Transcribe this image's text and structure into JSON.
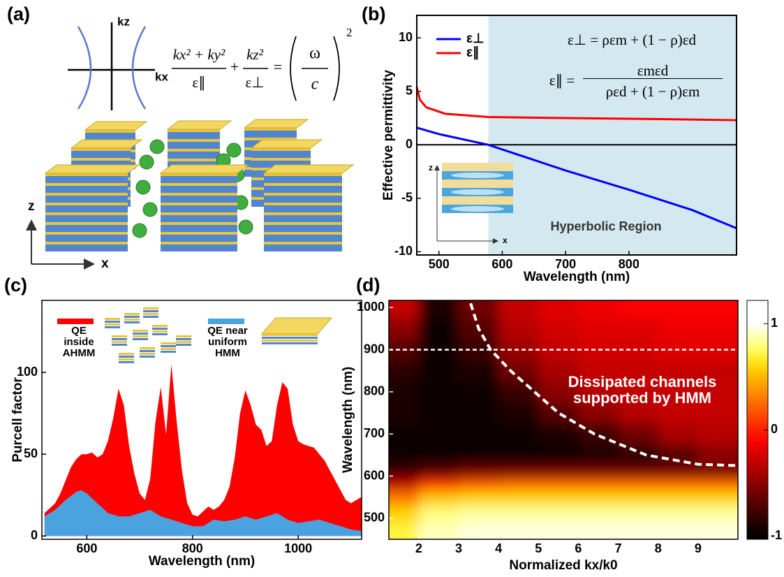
{
  "panel_labels": [
    "(a)",
    "(b)",
    "(c)",
    "(d)"
  ],
  "diagram_a": {
    "kz_label": "kz",
    "kx_label": "kx",
    "equation": {
      "num1": "kx² + ky²",
      "den1": "ε∥",
      "plus": "+",
      "num2": "kz²",
      "den2": "ε⊥",
      "equals": "=",
      "omega": "ω",
      "c": "c",
      "power": "2"
    },
    "axis_z": "z",
    "axis_x": "x"
  },
  "chart_data": [
    {
      "type": "line",
      "xlabel": "Wavelength (nm)",
      "ylabel": "Effective permittivity",
      "xlim": [
        465,
        970
      ],
      "xticks": [
        500,
        600,
        700,
        800
      ],
      "ylim": [
        -10.3,
        12.1
      ],
      "yticks": [
        -10,
        -5,
        0,
        5,
        10
      ],
      "series": [
        {
          "name": "ε⊥",
          "color": "#0000ff",
          "x": [
            465,
            500,
            578,
            700,
            800,
            900,
            970
          ],
          "values": [
            1.6,
            1.0,
            0,
            -2.4,
            -4.2,
            -6.1,
            -7.8
          ]
        },
        {
          "name": "ε∥",
          "color": "#ff0000",
          "x": [
            465,
            470,
            480,
            510,
            578,
            700,
            850,
            970
          ],
          "values": [
            5.4,
            4.2,
            3.5,
            2.9,
            2.6,
            2.5,
            2.4,
            2.3
          ]
        }
      ],
      "region_start": 578,
      "region_color": "#d4e8f0",
      "annotation": "Hyperbolic Region",
      "inset_labels": {
        "z": "z",
        "x": "x"
      },
      "equations": {
        "perp": "ε⊥ = ρεm + (1 − ρ)εd",
        "par_lhs": "ε∥ =",
        "par_num": "εmεd",
        "par_den": "ρεd + (1 − ρ)εm"
      }
    },
    {
      "type": "area",
      "xlabel": "Wavelength (nm)",
      "ylabel": "Purcell factor",
      "xlim": [
        515,
        1120
      ],
      "xticks": [
        600,
        800,
        1000
      ],
      "ylim": [
        -2,
        144
      ],
      "yticks": [
        0,
        50,
        100
      ],
      "series": [
        {
          "name": "QE inside AHMM",
          "color": "#ff0000",
          "x": [
            520,
            530,
            540,
            550,
            560,
            570,
            580,
            590,
            600,
            610,
            620,
            630,
            640,
            650,
            660,
            670,
            680,
            690,
            700,
            710,
            720,
            730,
            740,
            750,
            760,
            770,
            780,
            790,
            800,
            810,
            820,
            830,
            840,
            850,
            860,
            870,
            880,
            890,
            900,
            910,
            920,
            930,
            940,
            950,
            960,
            970,
            980,
            990,
            1000,
            1010,
            1020,
            1030,
            1040,
            1050,
            1060,
            1070,
            1080,
            1090,
            1100,
            1110,
            1120
          ],
          "values": [
            14,
            17,
            20,
            26,
            34,
            42,
            47,
            50,
            50,
            51,
            48,
            50,
            58,
            72,
            90,
            80,
            55,
            38,
            26,
            22,
            35,
            70,
            91,
            62,
            105,
            70,
            40,
            20,
            13,
            12,
            15,
            18,
            16,
            18,
            22,
            30,
            48,
            75,
            89,
            80,
            68,
            65,
            55,
            58,
            80,
            94,
            90,
            68,
            58,
            56,
            55,
            54,
            50,
            46,
            40,
            34,
            28,
            22,
            20,
            22,
            24
          ]
        },
        {
          "name": "QE near uniform HMM",
          "color": "#4aa3df",
          "x": [
            520,
            540,
            560,
            580,
            590,
            600,
            620,
            640,
            660,
            680,
            700,
            720,
            740,
            760,
            780,
            800,
            820,
            840,
            860,
            880,
            900,
            920,
            940,
            960,
            980,
            1000,
            1020,
            1040,
            1060,
            1080,
            1100,
            1120
          ],
          "values": [
            12,
            16,
            22,
            27,
            28,
            26,
            20,
            14,
            12,
            12,
            14,
            16,
            12,
            10,
            8,
            6,
            6,
            10,
            9,
            10,
            12,
            10,
            12,
            14,
            10,
            8,
            9,
            10,
            8,
            6,
            4,
            3
          ]
        }
      ]
    },
    {
      "type": "heatmap",
      "xlabel": "Normalized kx/k0",
      "ylabel": "Wavelength (nm)",
      "xlim": [
        1.25,
        10
      ],
      "xticks": [
        2,
        3,
        4,
        5,
        6,
        7,
        8,
        9
      ],
      "ylim": [
        450,
        1017
      ],
      "yticks": [
        500,
        600,
        700,
        800,
        900,
        1000
      ],
      "x": [
        1.5,
        2.5,
        3.5,
        4.5,
        5.5,
        6.5,
        7.5,
        8.5,
        9.5
      ],
      "y": [
        470,
        510,
        550,
        580,
        610,
        650,
        700,
        750,
        800,
        850,
        900,
        950,
        1000
      ],
      "z": [
        [
          0.7,
          0.9,
          0.95,
          0.95,
          0.95,
          0.95,
          0.95,
          0.95,
          0.95
        ],
        [
          0.6,
          0.8,
          0.85,
          0.85,
          0.85,
          0.85,
          0.85,
          0.85,
          0.85
        ],
        [
          0.3,
          0.55,
          0.6,
          0.6,
          0.6,
          0.6,
          0.6,
          0.6,
          0.6
        ],
        [
          -0.3,
          0.1,
          0.2,
          0.25,
          0.25,
          0.25,
          0.25,
          0.25,
          0.25
        ],
        [
          -0.8,
          -0.7,
          -0.6,
          -0.6,
          -0.6,
          -0.6,
          -0.6,
          -0.6,
          -0.6
        ],
        [
          -0.95,
          -0.95,
          -0.95,
          -0.95,
          -0.95,
          -0.9,
          -0.85,
          -0.7,
          -0.5
        ],
        [
          -0.95,
          -0.95,
          -0.95,
          -0.95,
          -0.9,
          -0.8,
          -0.6,
          -0.4,
          -0.35
        ],
        [
          -0.9,
          -0.95,
          -0.95,
          -0.9,
          -0.7,
          -0.5,
          -0.35,
          -0.3,
          -0.3
        ],
        [
          -0.9,
          -0.95,
          -0.95,
          -0.8,
          -0.5,
          -0.35,
          -0.3,
          -0.3,
          -0.3
        ],
        [
          -0.85,
          -0.95,
          -0.9,
          -0.6,
          -0.4,
          -0.3,
          -0.3,
          -0.3,
          -0.3
        ],
        [
          -0.7,
          -0.95,
          -0.8,
          -0.45,
          -0.3,
          -0.25,
          -0.25,
          -0.2,
          -0.2
        ],
        [
          -0.5,
          -0.95,
          -0.7,
          -0.35,
          -0.25,
          -0.2,
          -0.2,
          -0.15,
          -0.15
        ],
        [
          -0.3,
          -0.9,
          -0.6,
          -0.3,
          -0.2,
          -0.15,
          -0.1,
          -0.1,
          -0.1
        ]
      ],
      "colorbar": {
        "lim": [
          -1.03,
          1.22
        ],
        "ticks": [
          -1,
          0,
          1
        ]
      },
      "dashed_line": 900,
      "boundary": {
        "x": [
          3.3,
          3.5,
          3.8,
          4.3,
          4.9,
          5.5,
          6.4,
          7.7,
          9.0,
          9.95
        ],
        "y": [
          1010,
          950,
          900,
          850,
          800,
          750,
          700,
          650,
          628,
          625
        ]
      },
      "annotation": "Dissipated channels supported by HMM"
    }
  ]
}
